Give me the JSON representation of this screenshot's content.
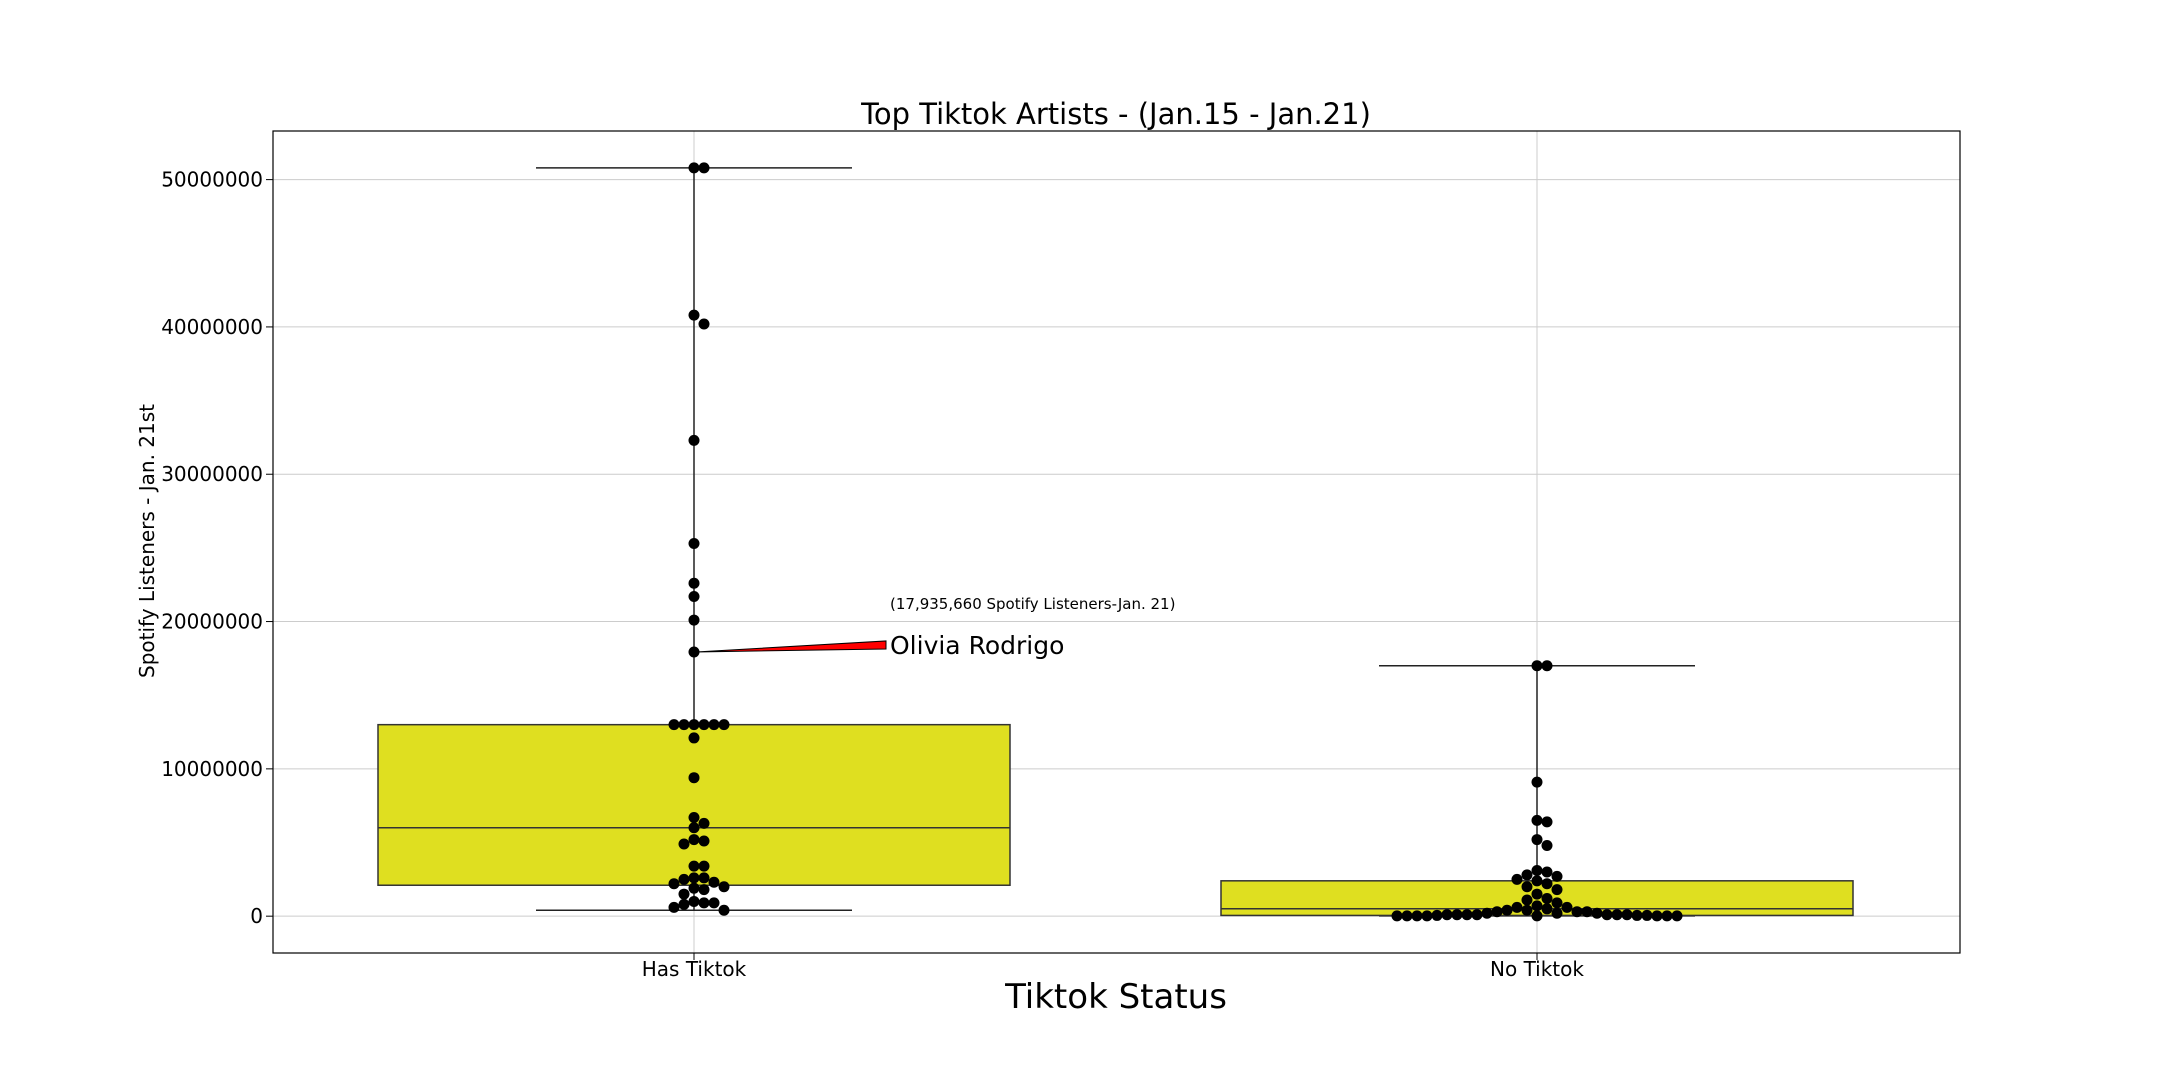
{
  "chart_data": {
    "type": "box",
    "title": "Top Tiktok Artists - (Jan.15 - Jan.21)",
    "xlabel": "Tiktok Status",
    "ylabel": "Spotify Listeners - Jan. 21st",
    "ylim": [
      -2500000,
      53300000
    ],
    "yticks": [
      0,
      10000000,
      20000000,
      30000000,
      40000000,
      50000000
    ],
    "ytick_labels": [
      "0",
      "10000000",
      "20000000",
      "30000000",
      "40000000",
      "50000000"
    ],
    "categories": [
      "Has Tiktok",
      "No Tiktok"
    ],
    "grid": true,
    "colors": {
      "box_fill": "#dfdf20",
      "point": "#000000",
      "arrow": "#ff0000",
      "grid": "#cccccc"
    },
    "boxes": [
      {
        "category": "Has Tiktok",
        "whisker_low": 400000,
        "q1": 2100000,
        "median": 6000000,
        "q3": 13000000,
        "whisker_high": 50800000
      },
      {
        "category": "No Tiktok",
        "whisker_low": 20000,
        "q1": 50000,
        "median": 500000,
        "q3": 2400000,
        "whisker_high": 17000000
      }
    ],
    "points": [
      {
        "category": "Has Tiktok",
        "values": [
          50800000,
          50800000,
          40800000,
          40200000,
          32300000,
          25300000,
          22600000,
          21700000,
          20100000,
          17935660,
          13000000,
          13000000,
          13000000,
          13000000,
          13000000,
          13000000,
          12100000,
          9400000,
          6700000,
          6300000,
          6000000,
          5200000,
          5100000,
          4900000,
          3400000,
          3400000,
          2600000,
          2600000,
          2500000,
          2300000,
          2200000,
          2000000,
          1900000,
          1800000,
          1500000,
          1000000,
          900000,
          900000,
          800000,
          600000,
          400000
        ]
      },
      {
        "category": "No Tiktok",
        "values": [
          17000000,
          17000000,
          9100000,
          6500000,
          6400000,
          5200000,
          4800000,
          3100000,
          3000000,
          2800000,
          2700000,
          2500000,
          2400000,
          2200000,
          2000000,
          1800000,
          1500000,
          1200000,
          1100000,
          900000,
          700000,
          600000,
          600000,
          500000,
          400000,
          400000,
          300000,
          300000,
          300000,
          200000,
          200000,
          200000,
          100000,
          100000,
          100000,
          100000,
          100000,
          100000,
          100000,
          50000,
          50000,
          50000,
          20000,
          20000,
          20000,
          20000,
          20000,
          20000,
          20000,
          20000
        ]
      }
    ],
    "annotation": {
      "label": "Olivia Rodrigo",
      "detail": "(17,935,660 Spotify Listeners-Jan. 21)",
      "category": "Has Tiktok",
      "value": 17935660
    }
  }
}
